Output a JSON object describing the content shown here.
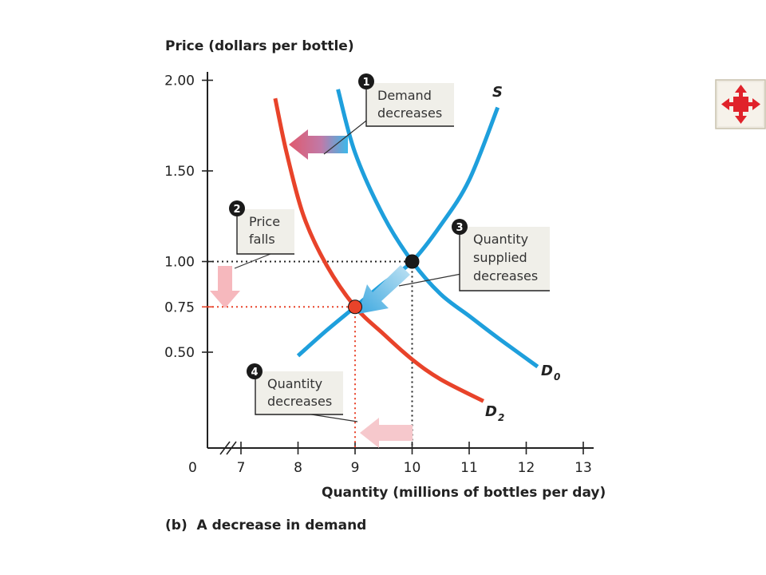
{
  "chart_data": {
    "type": "line",
    "title": "",
    "caption": "(b)  A decrease in demand",
    "xlabel": "Quantity (millions of bottles per day)",
    "ylabel": "Price (dollars per bottle)",
    "xlim": [
      6.3,
      13
    ],
    "ylim": [
      0,
      2.0
    ],
    "x_origin_label": "0",
    "x_ticks": [
      7,
      8,
      9,
      10,
      11,
      12,
      13
    ],
    "x_tick_labels": [
      "7",
      "8",
      "9",
      "10",
      "11",
      "12",
      "13"
    ],
    "y_ticks": [
      0.5,
      1.0,
      1.5,
      2.0
    ],
    "y_tick_labels": [
      "0.50",
      "1.00",
      "1.50",
      "2.00"
    ],
    "highlight_y_tick": {
      "value": 0.75,
      "label": "0.75",
      "color": "#e8432a"
    },
    "highlight_x_tick": {
      "value": 9,
      "label": "9",
      "color": "#e8432a"
    },
    "series": [
      {
        "name": "S",
        "color": "#1e9fdc",
        "points": [
          [
            8.0,
            0.48
          ],
          [
            8.5,
            0.62
          ],
          [
            9.0,
            0.75
          ],
          [
            9.5,
            0.88
          ],
          [
            10.0,
            1.0
          ],
          [
            10.5,
            1.2
          ],
          [
            11.0,
            1.45
          ],
          [
            11.5,
            1.85
          ]
        ]
      },
      {
        "name": "D0",
        "label_main": "D",
        "label_sub": "0",
        "color": "#1e9fdc",
        "points": [
          [
            8.7,
            1.95
          ],
          [
            9.0,
            1.6
          ],
          [
            9.5,
            1.25
          ],
          [
            10.0,
            1.0
          ],
          [
            10.5,
            0.82
          ],
          [
            11.0,
            0.7
          ],
          [
            11.5,
            0.58
          ],
          [
            12.2,
            0.42
          ]
        ]
      },
      {
        "name": "D2",
        "label_main": "D",
        "label_sub": "2",
        "color": "#e8432a",
        "points": [
          [
            7.6,
            1.9
          ],
          [
            7.8,
            1.6
          ],
          [
            8.1,
            1.25
          ],
          [
            8.5,
            0.98
          ],
          [
            9.0,
            0.75
          ],
          [
            9.5,
            0.6
          ],
          [
            10.0,
            0.46
          ],
          [
            10.5,
            0.35
          ],
          [
            11.25,
            0.23
          ]
        ]
      }
    ],
    "equilibria": [
      {
        "x": 10,
        "y": 1.0,
        "color": "#1a1a1a"
      },
      {
        "x": 9,
        "y": 0.75,
        "color": "#e8432a"
      }
    ],
    "annotations": [
      {
        "num": "1",
        "lines": [
          "Demand",
          "decreases"
        ]
      },
      {
        "num": "2",
        "lines": [
          "Price",
          "falls"
        ]
      },
      {
        "num": "3",
        "lines": [
          "Quantity",
          "supplied",
          "decreases"
        ]
      },
      {
        "num": "4",
        "lines": [
          "Quantity",
          "decreases"
        ]
      }
    ],
    "grid": false
  },
  "nav": {
    "icon": "expand-arrows-icon"
  }
}
